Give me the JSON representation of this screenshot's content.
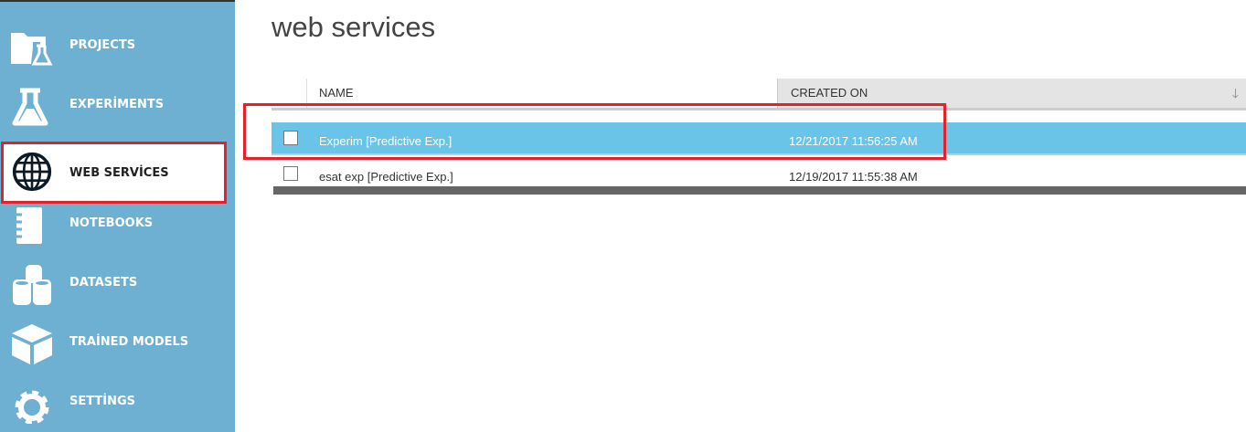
{
  "sidebar": {
    "items": [
      {
        "label": "PROJECTS",
        "icon": "folder-flask-icon"
      },
      {
        "label": "EXPERİMENTS",
        "icon": "flask-icon"
      },
      {
        "label": "WEB SERVİCES",
        "icon": "globe-icon",
        "selected": true
      },
      {
        "label": "NOTEBOOKS",
        "icon": "notebook-icon"
      },
      {
        "label": "DATASETS",
        "icon": "database-icon"
      },
      {
        "label": "TRAİNED MODELS",
        "icon": "cube-icon"
      },
      {
        "label": "SETTİNGS",
        "icon": "gear-icon"
      }
    ]
  },
  "main": {
    "title": "web services",
    "columns": {
      "name": "NAME",
      "created": "CREATED ON"
    },
    "sort": "descending",
    "rows": [
      {
        "name": "Experim [Predictive Exp.]",
        "created": "12/21/2017 11:56:25 AM",
        "selected": true
      },
      {
        "name": "esat exp [Predictive Exp.]",
        "created": "12/19/2017 11:55:38 AM",
        "selected": false
      }
    ]
  },
  "colors": {
    "sidebar": "#6eb0d2",
    "selected_row": "#6ac4e8",
    "highlight": "#e8202a"
  }
}
